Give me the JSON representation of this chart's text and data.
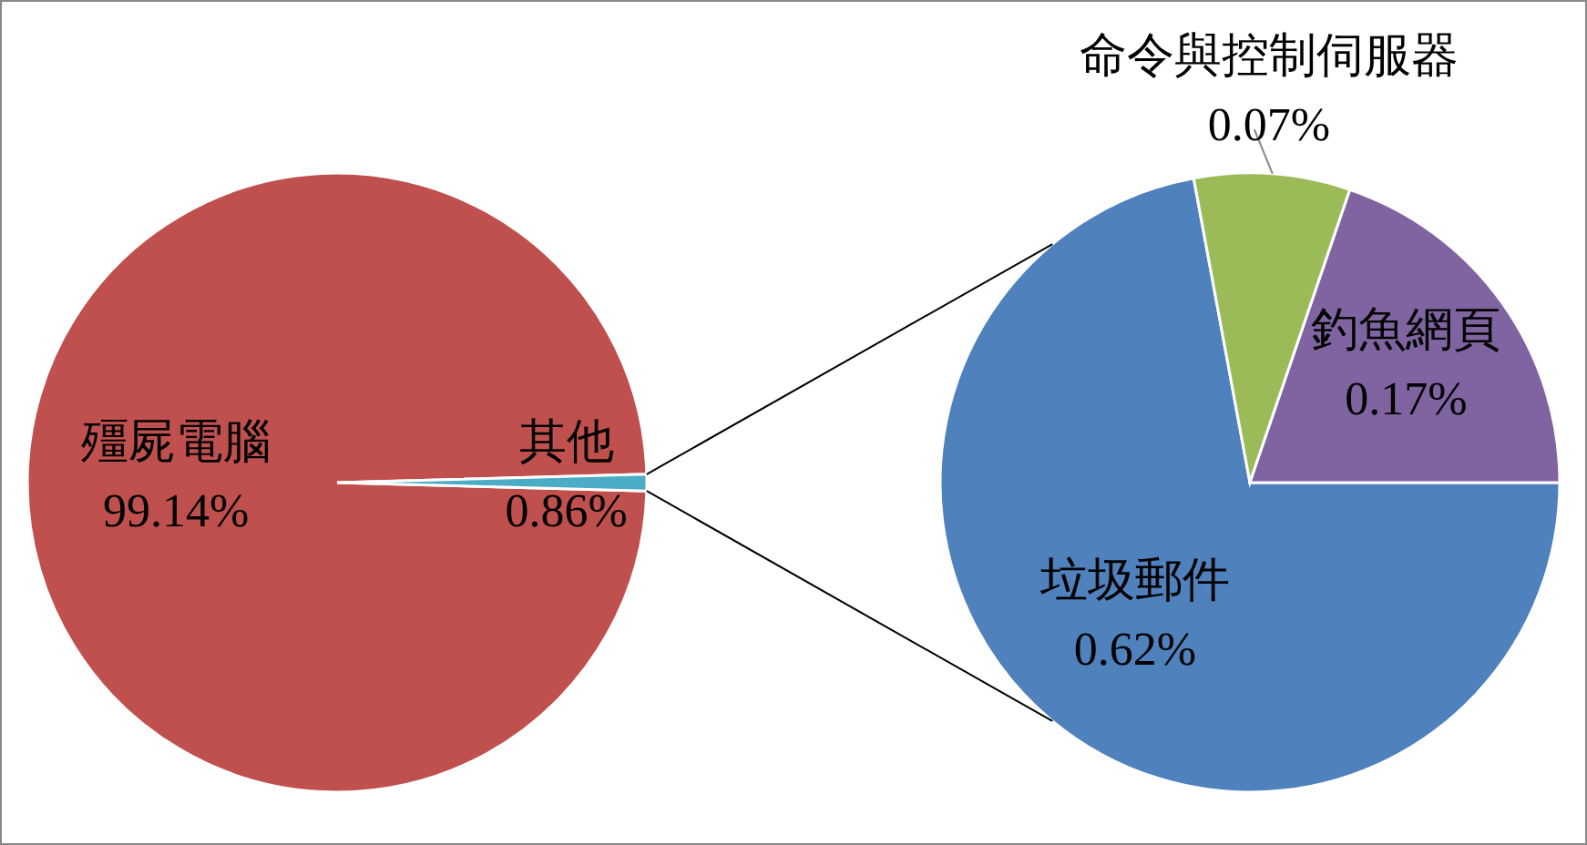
{
  "chart_data": [
    {
      "type": "pie",
      "categories": [
        "殭屍電腦",
        "其他"
      ],
      "values": [
        99.14,
        0.86
      ],
      "colors": [
        "#c0504d",
        "#4bacc6"
      ],
      "value_labels": [
        "99.14%",
        "0.86%"
      ]
    },
    {
      "type": "pie",
      "categories": [
        "垃圾郵件",
        "命令與控制伺服器",
        "釣魚網頁"
      ],
      "values": [
        0.62,
        0.07,
        0.17
      ],
      "colors": [
        "#4f81bd",
        "#9bbb59",
        "#8064a2"
      ],
      "value_labels": [
        "0.62%",
        "0.07%",
        "0.17%"
      ]
    }
  ]
}
